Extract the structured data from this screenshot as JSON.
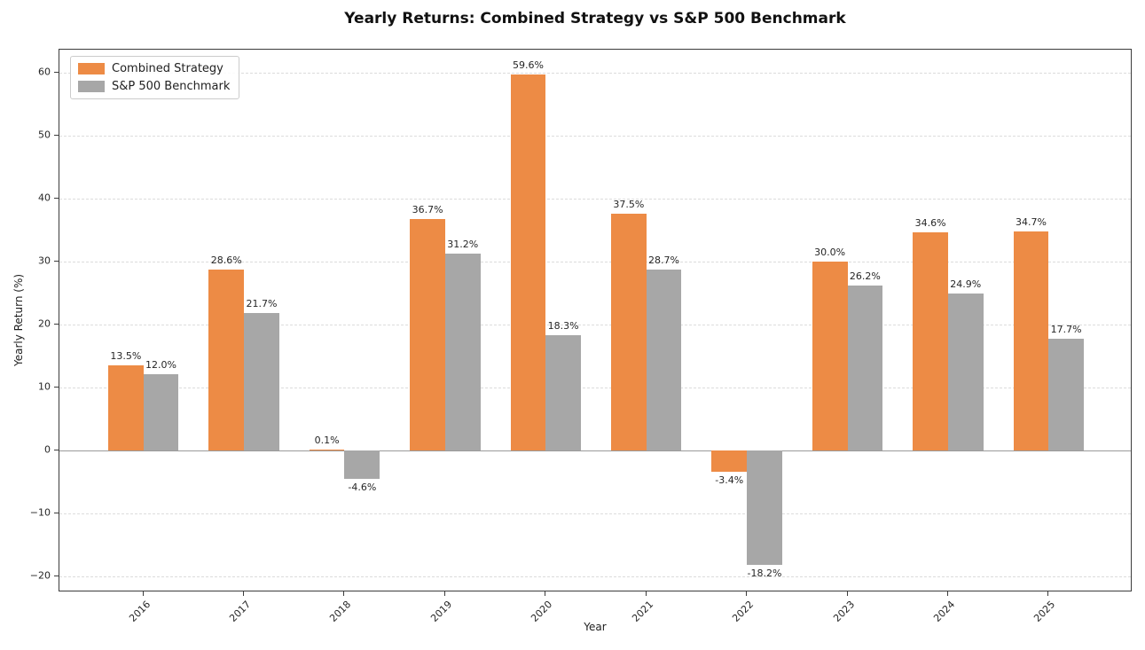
{
  "chart_data": {
    "type": "bar",
    "title": "Yearly Returns: Combined Strategy vs S&P 500 Benchmark",
    "xlabel": "Year",
    "ylabel": "Yearly Return (%)",
    "categories": [
      "2016",
      "2017",
      "2018",
      "2019",
      "2020",
      "2021",
      "2022",
      "2023",
      "2024",
      "2025"
    ],
    "series": [
      {
        "name": "Combined Strategy",
        "color": "#ed8b45",
        "values": [
          13.5,
          28.6,
          0.1,
          36.7,
          59.6,
          37.5,
          -3.4,
          30.0,
          34.6,
          34.7
        ],
        "value_labels": [
          "13.5%",
          "28.6%",
          "0.1%",
          "36.7%",
          "59.6%",
          "37.5%",
          "-3.4%",
          "30.0%",
          "34.6%",
          "34.7%"
        ]
      },
      {
        "name": "S&P 500 Benchmark",
        "color": "#a7a7a7",
        "values": [
          12.0,
          21.7,
          -4.6,
          31.2,
          18.3,
          28.7,
          -18.2,
          26.2,
          24.9,
          17.7
        ],
        "value_labels": [
          "12.0%",
          "21.7%",
          "-4.6%",
          "31.2%",
          "18.3%",
          "28.7%",
          "-18.2%",
          "26.2%",
          "24.9%",
          "17.7%"
        ]
      }
    ],
    "y_ticks": [
      -20,
      -10,
      0,
      10,
      20,
      30,
      40,
      50,
      60
    ],
    "y_tick_labels": [
      "−20",
      "−10",
      "0",
      "10",
      "20",
      "30",
      "40",
      "50",
      "60"
    ],
    "ylim": [
      -22.6,
      63.6
    ],
    "grid": "horizontal-dashed",
    "legend_position": "upper-left",
    "zero_line": true,
    "colors": {
      "grid": "#dcdcdc",
      "zero_line": "#9a9a9a",
      "spine": "#3c3c3c",
      "text": "#262626"
    }
  }
}
